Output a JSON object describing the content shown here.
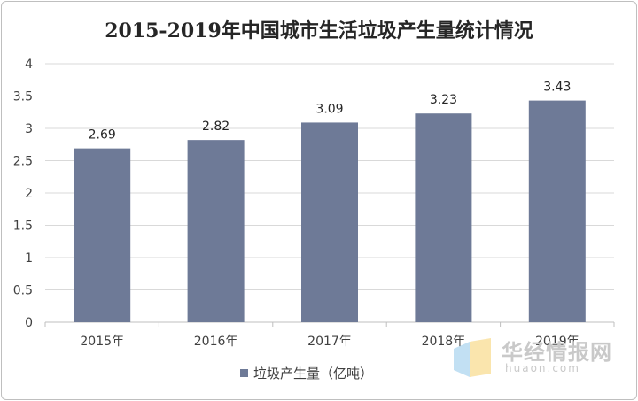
{
  "chart_data": {
    "type": "bar",
    "title": "2015-2019年中国城市生活垃圾产生量统计情况",
    "categories": [
      "2015年",
      "2016年",
      "2017年",
      "2018年",
      "2019年"
    ],
    "series": [
      {
        "name": "垃圾产生量（亿吨）",
        "values": [
          2.69,
          2.82,
          3.09,
          3.23,
          3.43
        ]
      }
    ],
    "data_labels": [
      "2.69",
      "2.82",
      "3.09",
      "3.23",
      "3.43"
    ],
    "y_ticks": [
      "0",
      "0.5",
      "1",
      "1.5",
      "2",
      "2.5",
      "3",
      "3.5",
      "4"
    ],
    "ylim": [
      0,
      4
    ],
    "xlabel": "",
    "ylabel": "",
    "grid": true,
    "legend_position": "bottom",
    "bar_color": "#6e7a97",
    "grid_color": "#d9d9d9"
  },
  "watermark": {
    "name": "华经情报网",
    "domain": "huaon.com"
  }
}
